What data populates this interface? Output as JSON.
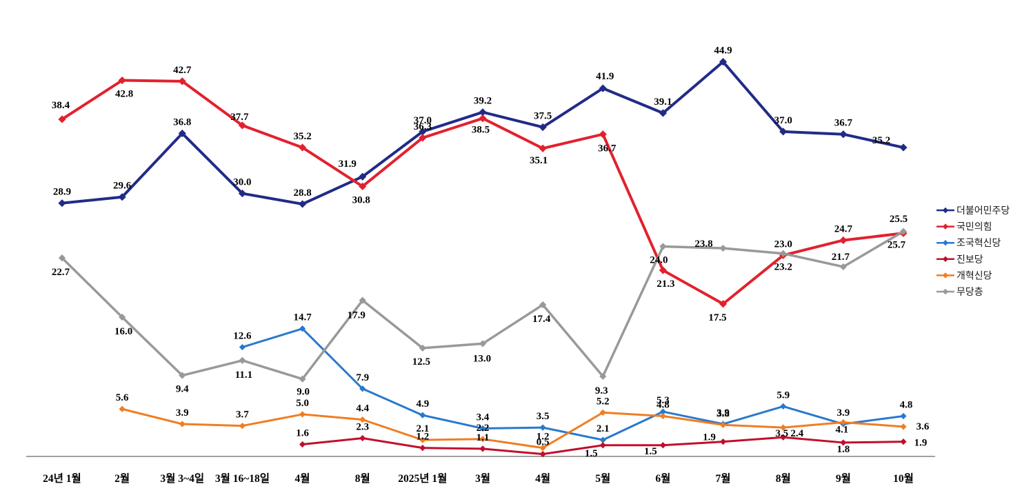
{
  "chart_data": {
    "type": "line",
    "title": "",
    "xlabel": "",
    "ylabel": "",
    "ylim": [
      0,
      50
    ],
    "grid": false,
    "legend_position": "right",
    "data_labels": true,
    "marker": "diamond",
    "axis_color": "#808080",
    "label_color": "#000000",
    "categories": [
      "24년 1월",
      "2월",
      "3월 3~4일",
      "3월 16~18일",
      "4월",
      "8월",
      "2025년 1월",
      "3월",
      "4월",
      "5월",
      "6월",
      "7월",
      "8월",
      "9월",
      "10월"
    ],
    "series": [
      {
        "name": "더불어민주당",
        "slug": "democratic-party",
        "color": "#212B87",
        "stroke_width": 4,
        "values": [
          28.9,
          29.6,
          36.8,
          30.0,
          28.8,
          31.9,
          37.0,
          39.2,
          37.5,
          41.9,
          39.1,
          44.9,
          37.0,
          36.7,
          35.2
        ],
        "label_offsets": {
          "5": [
            -22,
            -14
          ],
          "9": [
            3,
            -13
          ],
          "14": [
            -32,
            -6
          ]
        }
      },
      {
        "name": "국민의힘",
        "slug": "people-power-party",
        "color": "#E2212E",
        "stroke_width": 4,
        "values": [
          38.4,
          42.8,
          42.7,
          37.7,
          35.2,
          30.8,
          36.3,
          38.5,
          35.1,
          36.7,
          21.3,
          17.5,
          23.0,
          24.7,
          25.5
        ],
        "label_offsets": {
          "0": [
            -2,
            -16
          ],
          "1": [
            3,
            24
          ],
          "3": [
            -4,
            -8
          ],
          "5": [
            -2,
            24
          ],
          "7": [
            -3,
            21
          ],
          "8": [
            -6,
            22
          ],
          "9": [
            6,
            25
          ],
          "10": [
            4,
            24
          ],
          "11": [
            -8,
            24
          ],
          "14": [
            -7,
            -16
          ]
        }
      },
      {
        "name": "조국혁신당",
        "slug": "rebuilding-korea-party",
        "color": "#2879CE",
        "stroke_width": 3,
        "values": [
          null,
          null,
          null,
          12.6,
          14.7,
          7.9,
          4.9,
          3.4,
          3.5,
          2.1,
          5.3,
          3.9,
          5.9,
          3.9,
          4.8
        ],
        "label_offsets": {
          "14": [
            4,
            -12
          ]
        }
      },
      {
        "name": "진보당",
        "slug": "progressive-party",
        "color": "#C20E2E",
        "stroke_width": 3,
        "values": [
          null,
          null,
          null,
          null,
          1.6,
          2.3,
          1.2,
          1.1,
          0.5,
          1.5,
          1.5,
          1.9,
          2.4,
          1.8,
          1.9
        ],
        "label_offsets": {
          "8": [
            0,
            -13
          ],
          "9": [
            -17,
            16
          ],
          "10": [
            -18,
            13
          ],
          "11": [
            -20,
            -2
          ],
          "12": [
            20,
            -1
          ],
          "13": [
            0,
            14
          ],
          "14": [
            25,
            6
          ]
        }
      },
      {
        "name": "개혁신당",
        "slug": "reform-party",
        "color": "#F07D22",
        "stroke_width": 3,
        "values": [
          null,
          5.6,
          3.9,
          3.7,
          5.0,
          4.4,
          2.1,
          2.2,
          1.2,
          5.2,
          4.8,
          3.8,
          3.5,
          4.1,
          3.6
        ],
        "label_offsets": {
          "12": [
            -2,
            13
          ],
          "13": [
            -2,
            15
          ],
          "14": [
            28,
            4
          ]
        }
      },
      {
        "name": "무당층",
        "slug": "unaffiliated",
        "color": "#999999",
        "stroke_width": 3.5,
        "values": [
          22.7,
          16.0,
          9.4,
          11.1,
          9.0,
          17.9,
          12.5,
          13.0,
          17.4,
          9.3,
          24.0,
          23.8,
          23.2,
          21.7,
          25.7
        ],
        "label_offsets": {
          "0": [
            -2,
            25
          ],
          "1": [
            2,
            25
          ],
          "2": [
            0,
            24
          ],
          "3": [
            2,
            25
          ],
          "4": [
            1,
            23
          ],
          "5": [
            -9,
            26
          ],
          "6": [
            -2,
            24
          ],
          "7": [
            -1,
            26
          ],
          "8": [
            -2,
            25
          ],
          "9": [
            -2,
            25
          ],
          "10": [
            -6,
            24
          ],
          "11": [
            -28,
            -2
          ],
          "12": [
            0,
            24
          ],
          "13": [
            -4,
            -10
          ],
          "14": [
            -10,
            24
          ]
        }
      }
    ]
  }
}
